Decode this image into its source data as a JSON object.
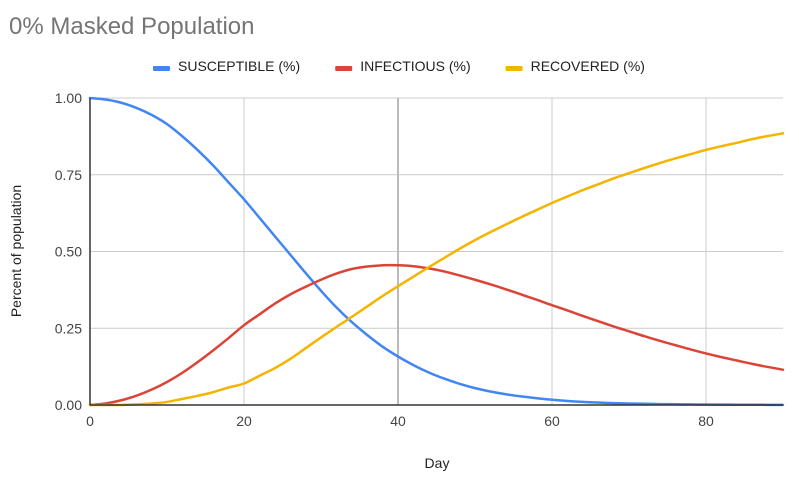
{
  "chart_data": {
    "type": "line",
    "title": "0% Masked Population",
    "xlabel": "Day",
    "ylabel": "Percent of population",
    "xlim": [
      0,
      90
    ],
    "ylim": [
      0,
      1
    ],
    "x_ticks": [
      0,
      20,
      40,
      60,
      80
    ],
    "x_tick_labels": [
      "0",
      "20",
      "40",
      "60",
      "80"
    ],
    "y_ticks": [
      0,
      0.25,
      0.5,
      0.75,
      1
    ],
    "y_tick_labels": [
      "0.00",
      "0.25",
      "0.50",
      "0.75",
      "1.00"
    ],
    "grid": true,
    "legend_position": "top",
    "x": [
      0,
      2,
      4,
      6,
      8,
      10,
      12,
      14,
      16,
      18,
      20,
      22,
      24,
      26,
      28,
      30,
      32,
      34,
      36,
      38,
      40,
      42,
      44,
      46,
      48,
      50,
      52,
      54,
      56,
      58,
      60,
      62,
      64,
      66,
      68,
      70,
      72,
      74,
      76,
      78,
      80,
      82,
      84,
      86,
      88,
      90
    ],
    "series": [
      {
        "name": "SUSCEPTIBLE (%)",
        "color": "#4285F4",
        "values": [
          1.0,
          0.995,
          0.985,
          0.968,
          0.945,
          0.915,
          0.875,
          0.83,
          0.78,
          0.725,
          0.67,
          0.61,
          0.55,
          0.49,
          0.43,
          0.372,
          0.318,
          0.27,
          0.228,
          0.19,
          0.158,
          0.13,
          0.106,
          0.086,
          0.069,
          0.055,
          0.044,
          0.035,
          0.028,
          0.022,
          0.017,
          0.013,
          0.01,
          0.008,
          0.006,
          0.005,
          0.004,
          0.003,
          0.0024,
          0.0019,
          0.0015,
          0.0012,
          0.001,
          0.0008,
          0.0006,
          0.0005
        ]
      },
      {
        "name": "INFECTIOUS (%)",
        "color": "#DB4437",
        "values": [
          0.0,
          0.005,
          0.015,
          0.03,
          0.05,
          0.075,
          0.105,
          0.14,
          0.178,
          0.218,
          0.26,
          0.295,
          0.33,
          0.36,
          0.385,
          0.408,
          0.428,
          0.443,
          0.451,
          0.455,
          0.455,
          0.452,
          0.445,
          0.435,
          0.422,
          0.408,
          0.393,
          0.377,
          0.36,
          0.343,
          0.325,
          0.308,
          0.29,
          0.273,
          0.256,
          0.24,
          0.224,
          0.209,
          0.195,
          0.181,
          0.168,
          0.156,
          0.145,
          0.134,
          0.124,
          0.115
        ]
      },
      {
        "name": "RECOVERED (%)",
        "color": "#F4B400",
        "values": [
          0.0,
          0.0,
          0.0,
          0.002,
          0.005,
          0.01,
          0.02,
          0.03,
          0.042,
          0.057,
          0.07,
          0.095,
          0.12,
          0.15,
          0.185,
          0.22,
          0.254,
          0.287,
          0.321,
          0.355,
          0.387,
          0.418,
          0.449,
          0.479,
          0.509,
          0.537,
          0.563,
          0.588,
          0.612,
          0.635,
          0.658,
          0.679,
          0.7,
          0.719,
          0.738,
          0.755,
          0.772,
          0.788,
          0.803,
          0.817,
          0.831,
          0.843,
          0.854,
          0.866,
          0.876,
          0.885
        ]
      }
    ]
  }
}
